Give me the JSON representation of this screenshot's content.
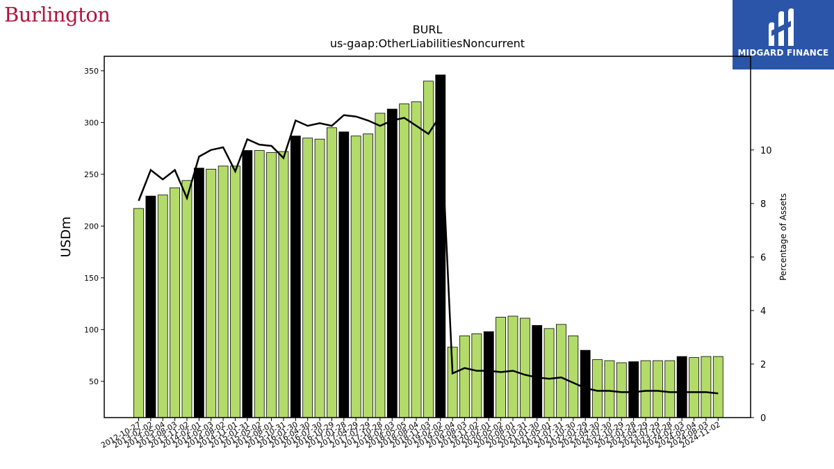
{
  "header": {
    "brand_logo_text": "Burlington",
    "partner_logo_text": "MIDGARD FINANCE"
  },
  "colors": {
    "bar_default": "#b3db6a",
    "bar_highlight": "#000000",
    "line": "#000000",
    "brand": "#b3123e",
    "partner_bg": "#2b55a8"
  },
  "chart_data": {
    "type": "bar",
    "title": "BURL",
    "subtitle": "us-gaap:OtherLiabilitiesNoncurrent",
    "ylabel": "USDm",
    "y2label": "Percentage of Assets",
    "ylim": [
      15,
      364
    ],
    "y2lim": [
      0,
      13.5
    ],
    "yticks": [
      50,
      100,
      150,
      200,
      250,
      300,
      350
    ],
    "y2ticks": [
      0,
      2,
      4,
      6,
      8,
      10
    ],
    "categories": [
      "2012-10-27",
      "2013-02-02",
      "2013-05-04",
      "2013-08-03",
      "2013-11-02",
      "2014-02-01",
      "2014-05-03",
      "2014-08-02",
      "2014-11-01",
      "2015-01-31",
      "2015-05-02",
      "2015-08-01",
      "2015-10-31",
      "2016-01-30",
      "2016-04-30",
      "2016-07-30",
      "2016-10-29",
      "2017-01-28",
      "2017-04-29",
      "2017-07-29",
      "2017-10-28",
      "2018-02-03",
      "2018-05-05",
      "2018-08-04",
      "2018-11-03",
      "2019-02-02",
      "2019-05-04",
      "2019-08-03",
      "2019-11-02",
      "2020-02-01",
      "2020-05-02",
      "2020-08-01",
      "2020-10-31",
      "2021-01-30",
      "2021-05-01",
      "2021-07-31",
      "2021-10-30",
      "2022-01-29",
      "2022-04-30",
      "2022-07-30",
      "2022-10-29",
      "2023-01-28",
      "2023-04-29",
      "2023-07-29",
      "2023-10-28",
      "2024-02-03",
      "2024-05-04",
      "2024-08-03",
      "2024-11-02"
    ],
    "series": [
      {
        "name": "",
        "kind": "bar",
        "values": [
          217,
          229,
          230,
          237,
          244,
          256,
          255,
          258,
          258,
          273,
          273,
          271,
          272,
          287,
          285,
          284,
          295,
          291,
          287,
          289,
          309,
          313,
          318,
          320,
          340,
          346,
          83,
          94,
          96,
          98,
          112,
          113,
          111,
          104,
          101,
          105,
          94,
          80,
          71,
          70,
          68,
          69,
          70,
          70,
          70,
          74,
          73,
          74,
          74
        ],
        "highlight": [
          false,
          true,
          false,
          false,
          false,
          true,
          false,
          false,
          false,
          true,
          false,
          false,
          false,
          true,
          false,
          false,
          false,
          true,
          false,
          false,
          false,
          true,
          false,
          false,
          false,
          true,
          false,
          false,
          false,
          true,
          false,
          false,
          false,
          true,
          false,
          false,
          false,
          true,
          false,
          false,
          false,
          true,
          false,
          false,
          false,
          true,
          false,
          false,
          false
        ]
      },
      {
        "name": "",
        "kind": "line",
        "axis": "right",
        "values": [
          8.1,
          9.25,
          8.9,
          9.25,
          8.2,
          9.75,
          10.0,
          10.1,
          9.2,
          10.4,
          10.2,
          10.15,
          9.7,
          11.1,
          10.9,
          11.0,
          10.9,
          11.3,
          11.25,
          11.1,
          10.9,
          11.1,
          11.2,
          10.9,
          10.6,
          11.3,
          1.65,
          1.85,
          1.75,
          1.75,
          1.7,
          1.75,
          1.6,
          1.5,
          1.45,
          1.5,
          1.3,
          1.1,
          1.0,
          1.0,
          0.95,
          0.95,
          1.0,
          1.0,
          0.95,
          0.95,
          0.95,
          0.95,
          0.9
        ]
      }
    ]
  }
}
